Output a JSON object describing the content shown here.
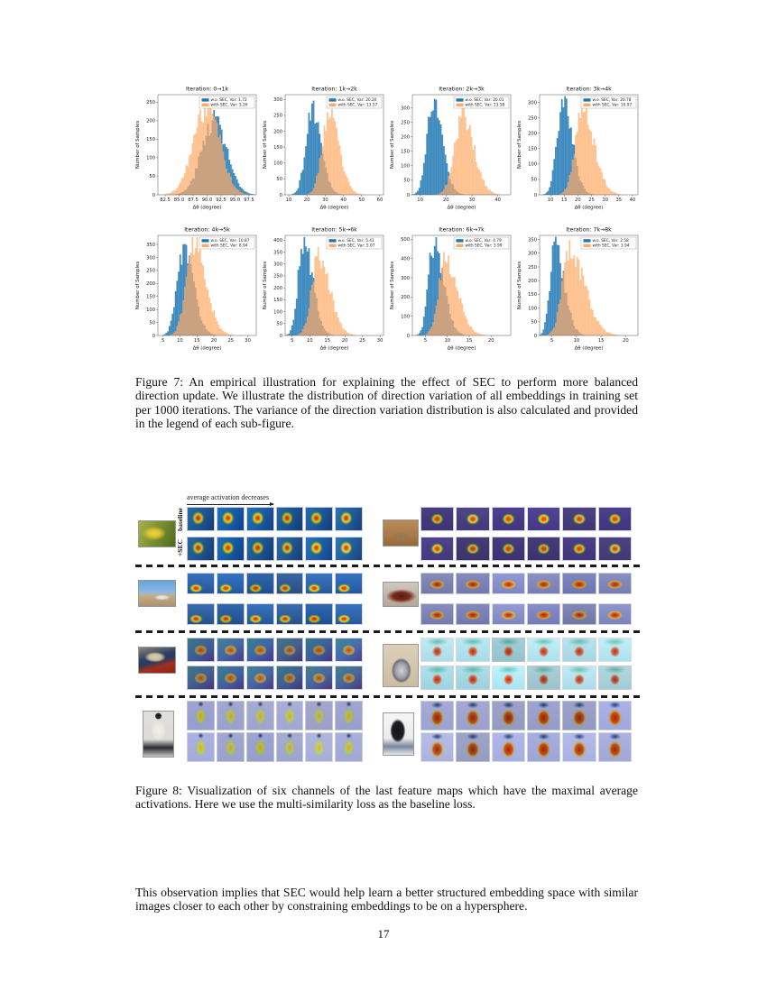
{
  "page_number": "17",
  "chart_data": [
    {
      "type": "histogram",
      "title": "Iteration: 0→1k",
      "xlabel": "Δθ (degree)",
      "ylabel": "Number of Samples",
      "xlim": [
        81.2,
        98.8
      ],
      "ylim": 270,
      "xticks": [
        "82.5",
        "85.0",
        "87.5",
        "90.0",
        "92.5",
        "95.0",
        "97.5"
      ],
      "yticks": [
        0,
        50,
        100,
        150,
        200,
        250
      ],
      "series": [
        {
          "name": "w.o. SEC, Var: 1.72",
          "color": "#1f77b4",
          "peak": 91.3,
          "sigma_l": 2.2,
          "sigma_r": 2.2,
          "max": 205
        },
        {
          "name": "with SEC, Var: 5.26",
          "color": "#ffaa66",
          "peak": 90.0,
          "sigma_l": 2.4,
          "sigma_r": 2.3,
          "max": 240
        }
      ]
    },
    {
      "type": "histogram",
      "title": "Iteration: 1k→2k",
      "xlabel": "Δθ (degree)",
      "ylabel": "Number of Samples",
      "xlim": [
        8,
        62
      ],
      "ylim": 315,
      "xticks": [
        "10",
        "20",
        "30",
        "40",
        "50",
        "60"
      ],
      "yticks": [
        0,
        50,
        100,
        150,
        200,
        250,
        300
      ],
      "series": [
        {
          "name": "w.o. SEC, Var: 20.20",
          "color": "#1f77b4",
          "peak": 23,
          "sigma_l": 3.6,
          "sigma_r": 5.0,
          "max": 262
        },
        {
          "name": "with SEC, Var: 13.57",
          "color": "#ffaa66",
          "peak": 32,
          "sigma_l": 3.8,
          "sigma_r": 5.6,
          "max": 248
        }
      ]
    },
    {
      "type": "histogram",
      "title": "Iteration: 2k→3k",
      "xlabel": "Δθ (degree)",
      "ylabel": "Number of Samples",
      "xlim": [
        7,
        45
      ],
      "ylim": 345,
      "xticks": [
        "10",
        "20",
        "30",
        "40"
      ],
      "yticks": [
        0,
        50,
        100,
        150,
        200,
        250,
        300
      ],
      "series": [
        {
          "name": "w.o. SEC, Var: 20.01",
          "color": "#1f77b4",
          "peak": 15,
          "sigma_l": 2.4,
          "sigma_r": 3.6,
          "max": 322
        },
        {
          "name": "with SEC, Var: 13.58",
          "color": "#ffaa66",
          "peak": 26.5,
          "sigma_l": 3.2,
          "sigma_r": 4.4,
          "max": 262
        }
      ]
    },
    {
      "type": "histogram",
      "title": "Iteration: 3k→4k",
      "xlabel": "Δθ (degree)",
      "ylabel": "Number of Samples",
      "xlim": [
        6,
        42
      ],
      "ylim": 325,
      "xticks": [
        "10",
        "15",
        "20",
        "25",
        "30",
        "35",
        "40"
      ],
      "yticks": [
        0,
        50,
        100,
        150,
        200,
        250,
        300
      ],
      "series": [
        {
          "name": "w.o. SEC, Var: 20.78",
          "color": "#1f77b4",
          "peak": 14.5,
          "sigma_l": 2.2,
          "sigma_r": 3.4,
          "max": 298
        },
        {
          "name": "with SEC, Var: 10.97",
          "color": "#ffaa66",
          "peak": 21.5,
          "sigma_l": 2.6,
          "sigma_r": 4.4,
          "max": 272
        }
      ]
    },
    {
      "type": "histogram",
      "title": "Iteration: 4k→5k",
      "xlabel": "Δθ (degree)",
      "ylabel": "Number of Samples",
      "xlim": [
        3.5,
        32.5
      ],
      "ylim": 385,
      "xticks": [
        "5",
        "10",
        "15",
        "20",
        "25",
        "30"
      ],
      "yticks": [
        0,
        50,
        100,
        150,
        200,
        250,
        300,
        350
      ],
      "series": [
        {
          "name": "w.o. SEC, Var: 10.87",
          "color": "#1f77b4",
          "peak": 11,
          "sigma_l": 1.9,
          "sigma_r": 3.0,
          "max": 328
        },
        {
          "name": "with SEC, Var: 8.94",
          "color": "#ffaa66",
          "peak": 14,
          "sigma_l": 2.2,
          "sigma_r": 3.6,
          "max": 358
        }
      ]
    },
    {
      "type": "histogram",
      "title": "Iteration: 5k→6k",
      "xlabel": "Δθ (degree)",
      "ylabel": "Number of Samples",
      "xlim": [
        3,
        31
      ],
      "ylim": 420,
      "xticks": [
        "5",
        "10",
        "15",
        "20",
        "25",
        "30"
      ],
      "yticks": [
        0,
        50,
        100,
        150,
        200,
        250,
        300,
        350,
        400
      ],
      "series": [
        {
          "name": "w.o. SEC, Var: 5.41",
          "color": "#1f77b4",
          "peak": 8.2,
          "sigma_l": 1.5,
          "sigma_r": 2.6,
          "max": 392
        },
        {
          "name": "with SEC, Var: 5.07",
          "color": "#ffaa66",
          "peak": 12.4,
          "sigma_l": 1.9,
          "sigma_r": 3.3,
          "max": 328
        }
      ]
    },
    {
      "type": "histogram",
      "title": "Iteration: 6k→7k",
      "xlabel": "Δθ (degree)",
      "ylabel": "Number of Samples",
      "xlim": [
        2,
        24.5
      ],
      "ylim": 520,
      "xticks": [
        "5",
        "10",
        "15",
        "20"
      ],
      "yticks": [
        0,
        100,
        200,
        300,
        400,
        500
      ],
      "series": [
        {
          "name": "w.o. SEC, Var: 4.79",
          "color": "#1f77b4",
          "peak": 6.8,
          "sigma_l": 1.2,
          "sigma_r": 2.3,
          "max": 462
        },
        {
          "name": "with SEC, Var: 3.99",
          "color": "#ffaa66",
          "peak": 9.4,
          "sigma_l": 1.5,
          "sigma_r": 2.9,
          "max": 382
        }
      ]
    },
    {
      "type": "histogram",
      "title": "Iteration: 7k→8k",
      "xlabel": "Δθ (degree)",
      "ylabel": "Number of Samples",
      "xlim": [
        2.5,
        22.5
      ],
      "ylim": 365,
      "xticks": [
        "5",
        "10",
        "15",
        "20"
      ],
      "yticks": [
        0,
        50,
        100,
        150,
        200,
        250,
        300,
        350
      ],
      "series": [
        {
          "name": "w.o. SEC, Var: 2.58",
          "color": "#1f77b4",
          "peak": 5.6,
          "sigma_l": 1.0,
          "sigma_r": 1.9,
          "max": 330
        },
        {
          "name": "with SEC, Var: 3.94",
          "color": "#ffaa66",
          "peak": 8.6,
          "sigma_l": 1.5,
          "sigma_r": 3.1,
          "max": 302
        }
      ]
    }
  ],
  "figure7": {
    "caption": "Figure 7: An empirical illustration for explaining the effect of SEC to perform more balanced direction update. We illustrate the distribution of direction variation of all embeddings in training set per 1000 iterations. The variance of the direction variation distribution is also calculated and provided in the legend of each sub-figure."
  },
  "figure8": {
    "caption": "Figure 8: Visualization of six channels of the last feature maps which have the maximal average activations. Here we use the multi-similarity loss as the baseline loss.",
    "arrow_label": "average activation decreases",
    "row_labels": [
      "baseline",
      "+SEC"
    ],
    "channels_per_row": 6,
    "blocks": [
      {
        "name": "bird",
        "desc": "yellow bird on branch",
        "style": "bird",
        "column": "left",
        "row": 1
      },
      {
        "name": "ground-bird",
        "desc": "small bird on brown ground",
        "style": "ground",
        "column": "right",
        "row": 1
      },
      {
        "name": "car",
        "desc": "white car near beach pier",
        "style": "car",
        "column": "left",
        "row": 2
      },
      {
        "name": "truck",
        "desc": "dark red pickup truck",
        "style": "truck",
        "column": "right",
        "row": 2
      },
      {
        "name": "sofa",
        "desc": "sofa with blanket on red floor",
        "style": "sofa",
        "column": "left",
        "row": 3
      },
      {
        "name": "kettle",
        "desc": "silver kettle with black handle",
        "style": "kettle",
        "column": "right",
        "row": 3
      },
      {
        "name": "person-white-top",
        "desc": "person in white top and black hat",
        "style": "personL",
        "column": "left",
        "row": 4
      },
      {
        "name": "person-black-sweater",
        "desc": "person in black sweater",
        "style": "personR",
        "column": "right",
        "row": 4
      }
    ]
  },
  "body_text": "This observation implies that SEC would help learn a better structured embedding space with similar images closer to each other by constraining embeddings to be on a hypersphere."
}
